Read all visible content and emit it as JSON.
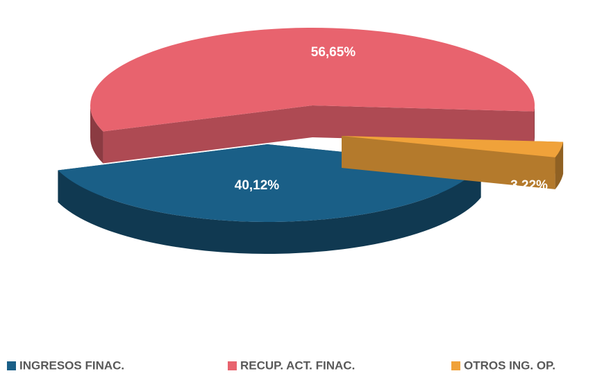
{
  "chart_data": {
    "type": "pie",
    "categories": [
      "INGRESOS FINAC.",
      "RECUP. ACT. FINAC.",
      "OTROS ING. OP."
    ],
    "values": [
      40.12,
      56.65,
      3.22
    ],
    "value_labels": [
      "40,12%",
      "56,65%",
      "3,22%"
    ],
    "colors": [
      "#1a5f87",
      "#e8636e",
      "#f0a23a"
    ],
    "legend": "bottom"
  }
}
